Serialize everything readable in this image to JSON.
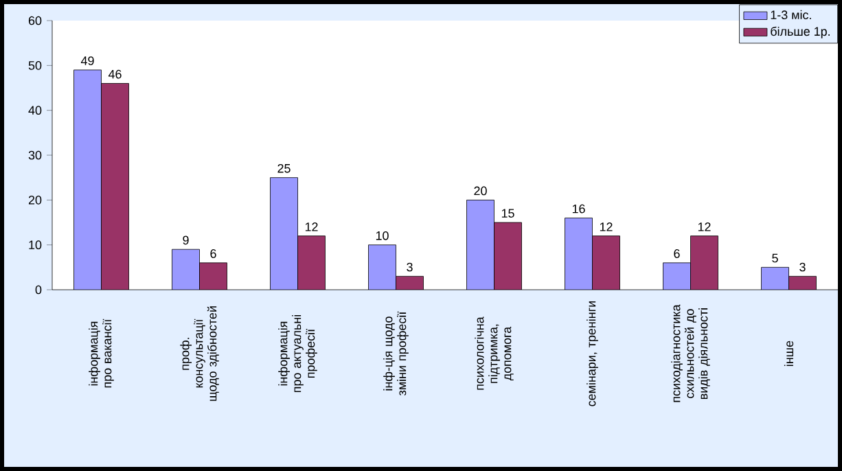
{
  "chart_data": {
    "type": "bar",
    "categories": [
      "інформація про вакансії",
      "проф. консультації щодо здібностей",
      "інформація про актуальні професії",
      "інф-ція щодо зміни професії",
      "психологічна підтримка, допомога",
      "семінари, тренінги",
      "психодіагностика схильностей до видів діяльності",
      "інше"
    ],
    "series": [
      {
        "name": "1-3 міс.",
        "color": "#9999ff",
        "values": [
          49,
          9,
          25,
          10,
          20,
          16,
          6,
          5
        ]
      },
      {
        "name": "більше 1р.",
        "color": "#993366",
        "values": [
          46,
          6,
          12,
          3,
          15,
          12,
          12,
          3
        ]
      }
    ],
    "ylim": [
      0,
      60
    ],
    "yticks": [
      0,
      10,
      20,
      30,
      40,
      50,
      60
    ],
    "data_labels": true,
    "legend": "top right",
    "grid": false
  }
}
